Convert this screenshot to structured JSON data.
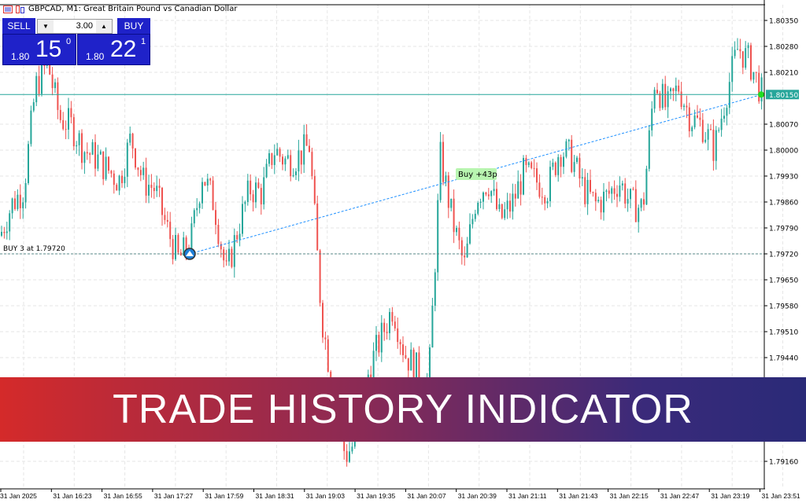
{
  "window": {
    "title": "GBPCAD, M1:  Great Britain Pound vs Canadian Dollar"
  },
  "trade_panel": {
    "sell_label": "SELL",
    "buy_label": "BUY",
    "volume": "3.00",
    "sell_price_prefix": "1.80",
    "sell_price_big": "15",
    "sell_price_sup": "0",
    "buy_price_prefix": "1.80",
    "buy_price_big": "22",
    "buy_price_sup": "1"
  },
  "banner": {
    "text": "TRADE HISTORY INDICATOR"
  },
  "colors": {
    "bull": "#26a69a",
    "bear": "#ef5350",
    "bid_line": "#26a69a",
    "trade_line": "#1e90ff",
    "panel": "#1f22c9"
  },
  "chart_data": {
    "type": "candlestick",
    "symbol": "GBPCAD",
    "timeframe": "M1",
    "ylim": [
      1.791,
      1.804
    ],
    "y_ticks": [
      "1.80350",
      "1.80280",
      "1.80210",
      "1.80070",
      "1.80000",
      "1.79930",
      "1.79860",
      "1.79790",
      "1.79720",
      "1.79650",
      "1.79580",
      "1.79510",
      "1.79440",
      "1.79160"
    ],
    "x_ticks": [
      "31 Jan 2025",
      "31 Jan 16:23",
      "31 Jan 16:55",
      "31 Jan 17:27",
      "31 Jan 17:59",
      "31 Jan 18:31",
      "31 Jan 19:03",
      "31 Jan 19:35",
      "31 Jan 20:07",
      "31 Jan 20:39",
      "31 Jan 21:11",
      "31 Jan 21:43",
      "31 Jan 22:15",
      "31 Jan 22:47",
      "31 Jan 23:19",
      "31 Jan 23:51"
    ],
    "close_path": [
      1.79769,
      1.79854,
      1.79896,
      1.80172,
      1.80235,
      1.80087,
      1.80066,
      1.80002,
      1.79981,
      1.79949,
      1.79917,
      1.80034,
      1.79917,
      1.79896,
      1.7979,
      1.79705,
      1.79748,
      1.79938,
      1.79854,
      1.79663,
      1.7979,
      1.79896,
      1.79885,
      1.80002,
      1.7997,
      1.79981,
      1.80013,
      1.79557,
      1.79345,
      1.79175,
      1.79218,
      1.79408,
      1.79493,
      1.79578,
      1.79451,
      1.79408,
      1.79366,
      1.79981,
      1.79811,
      1.79684,
      1.79875,
      1.79917,
      1.79811,
      1.79854,
      1.79938,
      1.79917,
      1.79896,
      1.80002,
      1.79981,
      1.79896,
      1.79854,
      1.79875,
      1.79917,
      1.79854,
      1.79843,
      1.80193,
      1.80108,
      1.80172,
      1.80087,
      1.80066,
      1.80002,
      1.80151,
      1.80278,
      1.80235,
      1.80151
    ],
    "current_price": "1.80150",
    "trade": {
      "entry_label": "BUY 3 at 1.79720",
      "entry_price": 1.7972,
      "exit_price": 1.8015,
      "result_label": "Buy +43p"
    }
  }
}
